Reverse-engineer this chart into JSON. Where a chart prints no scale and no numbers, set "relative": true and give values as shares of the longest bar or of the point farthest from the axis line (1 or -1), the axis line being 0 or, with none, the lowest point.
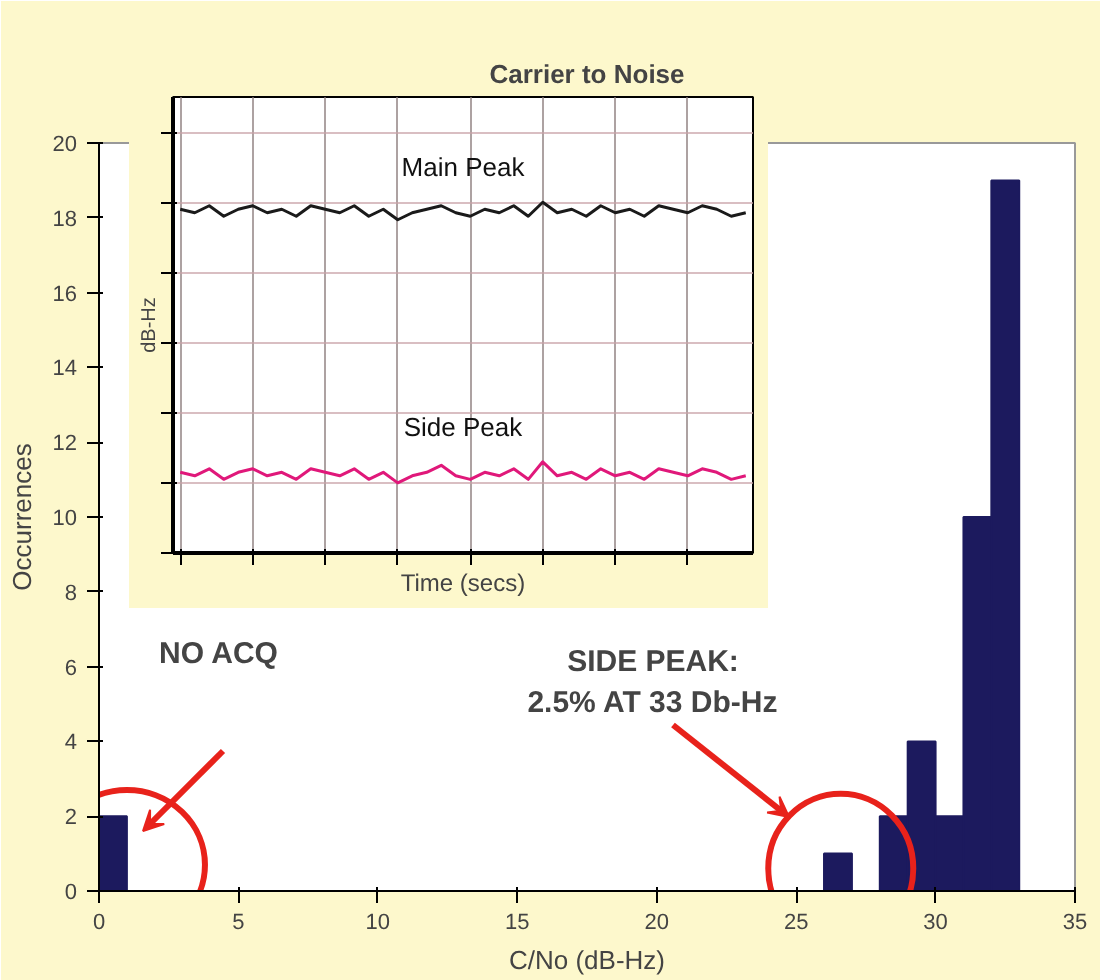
{
  "chart_data": [
    {
      "type": "histogram",
      "title": "Carrier to Noise",
      "xlabel": "C/No (dB-Hz)",
      "ylabel": "Occurrences",
      "bins": [
        0,
        1,
        2,
        3,
        4,
        5,
        6,
        7,
        8,
        9,
        10,
        11,
        12,
        13,
        14,
        15,
        16,
        17,
        18,
        19,
        20,
        21,
        22,
        23,
        24,
        25,
        26,
        27,
        28,
        29,
        30,
        31,
        32,
        33
      ],
      "values": [
        2,
        0,
        0,
        0,
        0,
        0,
        0,
        0,
        0,
        0,
        0,
        0,
        0,
        0,
        0,
        0,
        0,
        0,
        0,
        0,
        0,
        0,
        0,
        0,
        0,
        0,
        1,
        0,
        2,
        4,
        2,
        10,
        19
      ],
      "color": "#1c1a5e",
      "xlim": [
        0,
        35
      ],
      "ylim": [
        0,
        20
      ],
      "xticks": [
        0,
        5,
        10,
        15,
        20,
        25,
        30,
        35
      ],
      "yticks": [
        0,
        2,
        4,
        6,
        8,
        10,
        12,
        14,
        16,
        18,
        20
      ],
      "grid": false,
      "annotations": [
        "NO ACQ",
        "SIDE PEAK:\n2.5% AT 33 Db-Hz"
      ]
    },
    {
      "type": "line",
      "relative": true,
      "xlabel": "Time (secs)",
      "ylabel": "dB-Hz",
      "tick_labels": false,
      "grid": true,
      "categories": [
        null,
        null,
        null,
        null,
        null,
        null,
        null,
        null,
        null,
        null,
        null,
        null,
        null,
        null,
        null,
        null,
        null,
        null,
        null,
        null,
        null,
        null,
        null,
        null,
        null,
        null,
        null,
        null,
        null,
        null,
        null,
        null,
        null,
        null,
        null,
        null,
        null,
        null,
        null,
        null
      ],
      "series": [
        {
          "name": "Main Peak",
          "color": "#1a1a1a",
          "values": [
            0.98,
            0.97,
            0.99,
            0.96,
            0.98,
            0.99,
            0.97,
            0.98,
            0.96,
            0.99,
            0.98,
            0.97,
            0.99,
            0.96,
            0.98,
            0.95,
            0.97,
            0.98,
            0.99,
            0.97,
            0.96,
            0.98,
            0.97,
            0.99,
            0.96,
            1.0,
            0.97,
            0.98,
            0.96,
            0.99,
            0.97,
            0.98,
            0.96,
            0.99,
            0.98,
            0.97,
            0.99,
            0.98,
            0.96,
            0.97
          ]
        },
        {
          "name": "Side Peak",
          "color": "#e0187a",
          "values": [
            0.23,
            0.22,
            0.24,
            0.21,
            0.23,
            0.24,
            0.22,
            0.23,
            0.21,
            0.24,
            0.23,
            0.22,
            0.24,
            0.21,
            0.23,
            0.2,
            0.22,
            0.23,
            0.25,
            0.22,
            0.21,
            0.23,
            0.22,
            0.24,
            0.21,
            0.26,
            0.22,
            0.23,
            0.21,
            0.24,
            0.22,
            0.23,
            0.21,
            0.24,
            0.23,
            0.22,
            0.24,
            0.23,
            0.21,
            0.22
          ]
        }
      ]
    }
  ]
}
